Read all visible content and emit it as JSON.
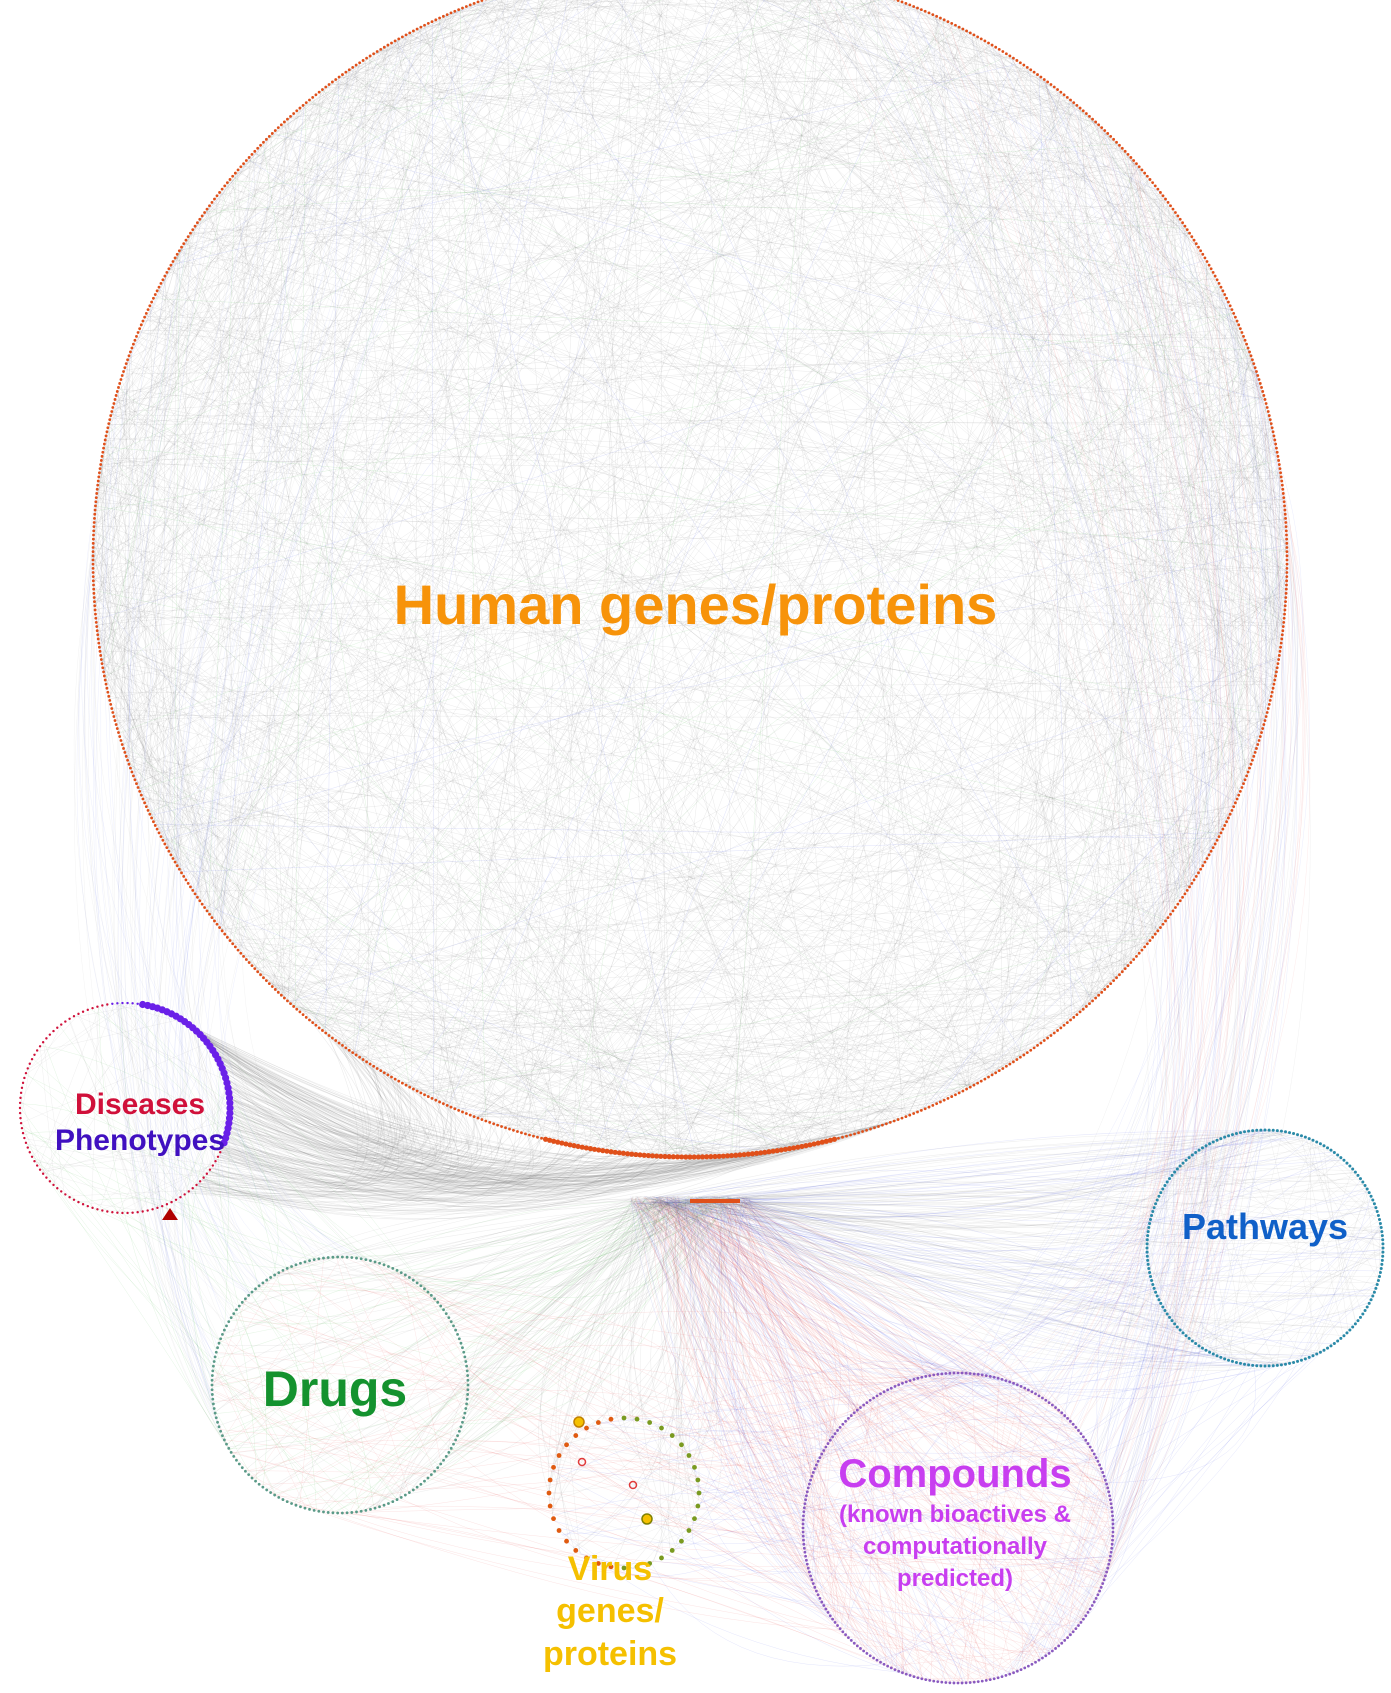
{
  "colors": {
    "human": "#f7930a",
    "human_nodes": "#e0501a",
    "diseases": "#d0103a",
    "phenotypes": "#4010c0",
    "phenotype_nodes": "#6a20e8",
    "pathways": "#1060c8",
    "pathway_nodes": "#2a8aa8",
    "drugs": "#14922e",
    "drug_nodes": "#5a9a88",
    "compounds": "#c83ef0",
    "compound_nodes": "#8a5ac0",
    "virus": "#f5c000",
    "virus_nodes_left": "#e05a10",
    "virus_nodes_right": "#7a9a20",
    "edge_gray": "#7a7a7a",
    "edge_green": "#3cb43c",
    "edge_red": "#e03a3a",
    "edge_blue": "#3a4ae0"
  },
  "clusters": {
    "human": {
      "label": "Human genes/proteins"
    },
    "diseases_phenotypes": {
      "label_diseases": "Diseases",
      "label_phenotypes": "Phenotypes"
    },
    "pathways": {
      "label": "Pathways"
    },
    "drugs": {
      "label": "Drugs"
    },
    "compounds": {
      "label": "Compounds",
      "sub_line1": "(known bioactives &",
      "sub_line2": "computationally",
      "sub_line3": "predicted)"
    },
    "virus": {
      "line1": "Virus",
      "line2": "genes/",
      "line3": "proteins"
    }
  }
}
